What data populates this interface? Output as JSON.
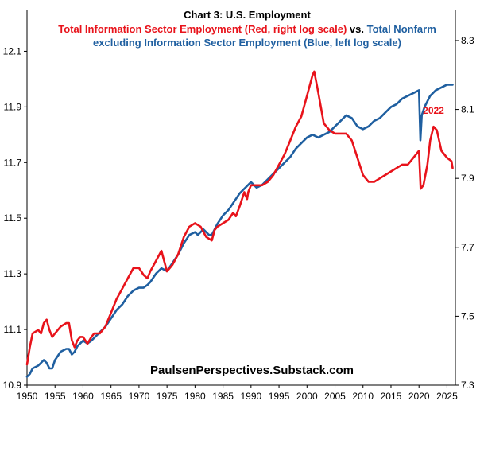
{
  "chart_data": {
    "type": "line",
    "title": "Chart 3: U.S. Employment",
    "subtitle_parts": [
      {
        "text": "Total Information Sector Employment (Red, right log scale)",
        "color": "#e8131b"
      },
      {
        "text": " vs. ",
        "color": "#000000"
      },
      {
        "text": "Total Nonfarm",
        "color": "#1f5fa0"
      }
    ],
    "subtitle_line2": "excluding Information Sector Employment (Blue, left log scale)",
    "subtitle_line2_color": "#1f5fa0",
    "xlim": [
      1950,
      2026.5
    ],
    "x_ticks": [
      1950,
      1955,
      1960,
      1965,
      1970,
      1975,
      1980,
      1985,
      1990,
      1995,
      2000,
      2005,
      2010,
      2015,
      2020,
      2025
    ],
    "y_left": {
      "range": [
        10.9,
        12.25
      ],
      "ticks": [
        10.9,
        11.1,
        11.3,
        11.5,
        11.7,
        11.9,
        12.1
      ],
      "tick_labels": [
        "10.9",
        "11.1",
        "11.3",
        "11.5",
        "11.7",
        "11.9",
        "12.1"
      ]
    },
    "y_right": {
      "range": [
        7.3,
        8.39
      ],
      "ticks": [
        7.3,
        7.5,
        7.7,
        7.9,
        8.1,
        8.3
      ],
      "tick_labels": [
        "7.3",
        "7.5",
        "7.7",
        "7.9",
        "8.1",
        "8.3"
      ]
    },
    "grid": false,
    "series": [
      {
        "name": "Total Nonfarm excluding Information Sector Employment (left log scale)",
        "axis": "left",
        "color": "#1f5fa0",
        "points": [
          [
            1950.0,
            10.93
          ],
          [
            1950.5,
            10.94
          ],
          [
            1951.0,
            10.96
          ],
          [
            1952.0,
            10.97
          ],
          [
            1953.0,
            10.99
          ],
          [
            1953.5,
            10.98
          ],
          [
            1954.0,
            10.96
          ],
          [
            1954.5,
            10.96
          ],
          [
            1955.0,
            10.99
          ],
          [
            1956.0,
            11.02
          ],
          [
            1957.0,
            11.03
          ],
          [
            1957.5,
            11.03
          ],
          [
            1958.0,
            11.01
          ],
          [
            1958.5,
            11.02
          ],
          [
            1959.0,
            11.04
          ],
          [
            1960.0,
            11.06
          ],
          [
            1960.8,
            11.05
          ],
          [
            1961.5,
            11.06
          ],
          [
            1962.0,
            11.07
          ],
          [
            1963.0,
            11.09
          ],
          [
            1964.0,
            11.11
          ],
          [
            1965.0,
            11.14
          ],
          [
            1966.0,
            11.17
          ],
          [
            1967.0,
            11.19
          ],
          [
            1968.0,
            11.22
          ],
          [
            1969.0,
            11.24
          ],
          [
            1970.0,
            11.25
          ],
          [
            1970.8,
            11.25
          ],
          [
            1971.5,
            11.26
          ],
          [
            1972.0,
            11.27
          ],
          [
            1973.0,
            11.3
          ],
          [
            1974.0,
            11.32
          ],
          [
            1975.0,
            11.31
          ],
          [
            1976.0,
            11.34
          ],
          [
            1977.0,
            11.37
          ],
          [
            1978.0,
            11.41
          ],
          [
            1979.0,
            11.44
          ],
          [
            1980.0,
            11.45
          ],
          [
            1980.5,
            11.44
          ],
          [
            1981.0,
            11.45
          ],
          [
            1981.5,
            11.46
          ],
          [
            1982.5,
            11.44
          ],
          [
            1983.0,
            11.44
          ],
          [
            1984.0,
            11.48
          ],
          [
            1985.0,
            11.51
          ],
          [
            1986.0,
            11.53
          ],
          [
            1987.0,
            11.56
          ],
          [
            1988.0,
            11.59
          ],
          [
            1989.0,
            11.61
          ],
          [
            1990.0,
            11.63
          ],
          [
            1991.0,
            11.61
          ],
          [
            1992.0,
            11.62
          ],
          [
            1993.0,
            11.64
          ],
          [
            1994.0,
            11.66
          ],
          [
            1995.0,
            11.68
          ],
          [
            1996.0,
            11.7
          ],
          [
            1997.0,
            11.72
          ],
          [
            1998.0,
            11.75
          ],
          [
            1999.0,
            11.77
          ],
          [
            2000.0,
            11.79
          ],
          [
            2001.0,
            11.8
          ],
          [
            2002.0,
            11.79
          ],
          [
            2003.0,
            11.8
          ],
          [
            2004.0,
            11.81
          ],
          [
            2005.0,
            11.83
          ],
          [
            2006.0,
            11.85
          ],
          [
            2007.0,
            11.87
          ],
          [
            2008.0,
            11.86
          ],
          [
            2009.0,
            11.83
          ],
          [
            2010.0,
            11.82
          ],
          [
            2011.0,
            11.83
          ],
          [
            2012.0,
            11.85
          ],
          [
            2013.0,
            11.86
          ],
          [
            2014.0,
            11.88
          ],
          [
            2015.0,
            11.9
          ],
          [
            2016.0,
            11.91
          ],
          [
            2017.0,
            11.93
          ],
          [
            2018.0,
            11.94
          ],
          [
            2019.0,
            11.95
          ],
          [
            2020.0,
            11.96
          ],
          [
            2020.25,
            11.78
          ],
          [
            2020.5,
            11.87
          ],
          [
            2021.0,
            11.9
          ],
          [
            2022.0,
            11.94
          ],
          [
            2023.0,
            11.96
          ],
          [
            2024.0,
            11.97
          ],
          [
            2025.0,
            11.98
          ],
          [
            2026.0,
            11.98
          ]
        ]
      },
      {
        "name": "Total Information Sector Employment (right log scale)",
        "axis": "right",
        "color": "#e8131b",
        "points": [
          [
            1950.0,
            7.36
          ],
          [
            1950.5,
            7.41
          ],
          [
            1951.0,
            7.45
          ],
          [
            1952.0,
            7.46
          ],
          [
            1952.5,
            7.45
          ],
          [
            1953.0,
            7.48
          ],
          [
            1953.5,
            7.49
          ],
          [
            1954.0,
            7.46
          ],
          [
            1954.5,
            7.44
          ],
          [
            1955.0,
            7.45
          ],
          [
            1956.0,
            7.47
          ],
          [
            1957.0,
            7.48
          ],
          [
            1957.5,
            7.48
          ],
          [
            1958.0,
            7.43
          ],
          [
            1958.5,
            7.41
          ],
          [
            1959.0,
            7.43
          ],
          [
            1959.5,
            7.44
          ],
          [
            1960.0,
            7.44
          ],
          [
            1960.8,
            7.42
          ],
          [
            1961.5,
            7.44
          ],
          [
            1962.0,
            7.45
          ],
          [
            1963.0,
            7.45
          ],
          [
            1964.0,
            7.47
          ],
          [
            1965.0,
            7.51
          ],
          [
            1966.0,
            7.55
          ],
          [
            1967.0,
            7.58
          ],
          [
            1968.0,
            7.61
          ],
          [
            1969.0,
            7.64
          ],
          [
            1970.0,
            7.64
          ],
          [
            1970.8,
            7.62
          ],
          [
            1971.5,
            7.61
          ],
          [
            1972.0,
            7.63
          ],
          [
            1973.0,
            7.66
          ],
          [
            1974.0,
            7.69
          ],
          [
            1975.0,
            7.63
          ],
          [
            1975.5,
            7.64
          ],
          [
            1976.0,
            7.65
          ],
          [
            1977.0,
            7.68
          ],
          [
            1978.0,
            7.73
          ],
          [
            1979.0,
            7.76
          ],
          [
            1980.0,
            7.77
          ],
          [
            1981.0,
            7.76
          ],
          [
            1982.0,
            7.73
          ],
          [
            1983.0,
            7.72
          ],
          [
            1983.5,
            7.75
          ],
          [
            1984.0,
            7.76
          ],
          [
            1985.0,
            7.77
          ],
          [
            1986.0,
            7.78
          ],
          [
            1986.8,
            7.8
          ],
          [
            1987.3,
            7.79
          ],
          [
            1988.0,
            7.82
          ],
          [
            1988.8,
            7.86
          ],
          [
            1989.3,
            7.84
          ],
          [
            1989.5,
            7.86
          ],
          [
            1990.0,
            7.88
          ],
          [
            1991.0,
            7.88
          ],
          [
            1992.0,
            7.88
          ],
          [
            1993.0,
            7.89
          ],
          [
            1994.0,
            7.91
          ],
          [
            1995.0,
            7.94
          ],
          [
            1996.0,
            7.97
          ],
          [
            1997.0,
            8.01
          ],
          [
            1998.0,
            8.05
          ],
          [
            1999.0,
            8.08
          ],
          [
            2000.0,
            8.14
          ],
          [
            2001.0,
            8.2
          ],
          [
            2001.3,
            8.21
          ],
          [
            2002.0,
            8.15
          ],
          [
            2003.0,
            8.06
          ],
          [
            2004.0,
            8.04
          ],
          [
            2005.0,
            8.03
          ],
          [
            2006.0,
            8.03
          ],
          [
            2007.0,
            8.03
          ],
          [
            2008.0,
            8.01
          ],
          [
            2009.0,
            7.96
          ],
          [
            2010.0,
            7.91
          ],
          [
            2011.0,
            7.89
          ],
          [
            2012.0,
            7.89
          ],
          [
            2013.0,
            7.9
          ],
          [
            2014.0,
            7.91
          ],
          [
            2015.0,
            7.92
          ],
          [
            2016.0,
            7.93
          ],
          [
            2017.0,
            7.94
          ],
          [
            2018.0,
            7.94
          ],
          [
            2019.0,
            7.96
          ],
          [
            2020.0,
            7.98
          ],
          [
            2020.3,
            7.87
          ],
          [
            2020.8,
            7.88
          ],
          [
            2021.5,
            7.94
          ],
          [
            2022.0,
            8.01
          ],
          [
            2022.6,
            8.05
          ],
          [
            2023.2,
            8.04
          ],
          [
            2024.0,
            7.98
          ],
          [
            2025.0,
            7.96
          ],
          [
            2025.8,
            7.95
          ],
          [
            2026.0,
            7.93
          ]
        ]
      }
    ],
    "annotations": [
      {
        "text": "2022",
        "color": "#e8131b",
        "x": 2022.6,
        "y_right": 8.087
      },
      {
        "text": "PaulsenPerspectives.Substack.com",
        "color": "#000000"
      }
    ]
  }
}
